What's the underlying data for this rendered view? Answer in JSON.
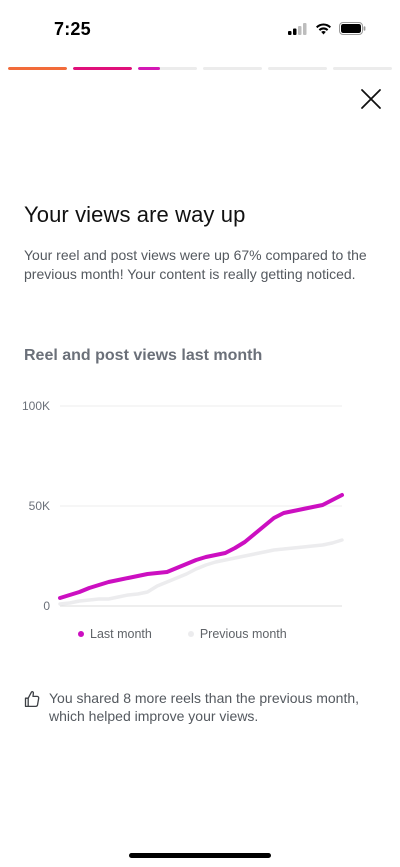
{
  "status_bar": {
    "time": "7:25"
  },
  "story_progress": [
    {
      "color": "#f26b3a",
      "fill": 1.0
    },
    {
      "color": "#e0107a",
      "fill": 1.0
    },
    {
      "color": "#d418b5",
      "fill": 0.37
    },
    {
      "color": "#ececec",
      "fill": 0
    },
    {
      "color": "#ececec",
      "fill": 0
    },
    {
      "color": "#ececec",
      "fill": 0
    }
  ],
  "header": {
    "title": "Your views are way up"
  },
  "body": {
    "description": "Your reel and post views were up 67% compared to the previous month! Your content is really getting noticed."
  },
  "chart_section": {
    "title": "Reel and post views last month"
  },
  "chart_data": {
    "type": "line",
    "title": "Reel and post views last month",
    "ylim": [
      0,
      100000
    ],
    "y_ticks": [
      {
        "value": 0,
        "label": "0"
      },
      {
        "value": 50000,
        "label": "50K"
      },
      {
        "value": 100000,
        "label": "100K"
      }
    ],
    "grid": true,
    "legend_position": "bottom",
    "x": [
      1,
      2,
      3,
      4,
      5,
      6,
      7,
      8,
      9,
      10,
      11,
      12,
      13,
      14,
      15,
      16,
      17,
      18,
      19,
      20,
      21,
      22,
      23,
      24,
      25,
      26,
      27,
      28,
      29,
      30
    ],
    "series": [
      {
        "name": "Last month",
        "color": "#cc0fc1",
        "values": [
          4000,
          5500,
          7000,
          9000,
          10500,
          12000,
          13000,
          14000,
          15000,
          16000,
          16500,
          17000,
          19000,
          21000,
          23000,
          24500,
          25500,
          26500,
          29000,
          32000,
          36000,
          40000,
          44000,
          46500,
          47500,
          48500,
          49500,
          50500,
          53000,
          55500
        ]
      },
      {
        "name": "Previous month",
        "color": "#ececee",
        "values": [
          1000,
          1500,
          2500,
          3000,
          3500,
          3500,
          4500,
          5500,
          6000,
          7000,
          10000,
          12000,
          14000,
          16000,
          18500,
          20500,
          22000,
          23000,
          24000,
          25000,
          26000,
          27000,
          28000,
          28500,
          29000,
          29500,
          30000,
          30500,
          31500,
          33000
        ]
      }
    ]
  },
  "insight": {
    "icon": "thumbs-up-icon",
    "text": "You shared 8 more reels than the previous month, which helped improve your views."
  }
}
